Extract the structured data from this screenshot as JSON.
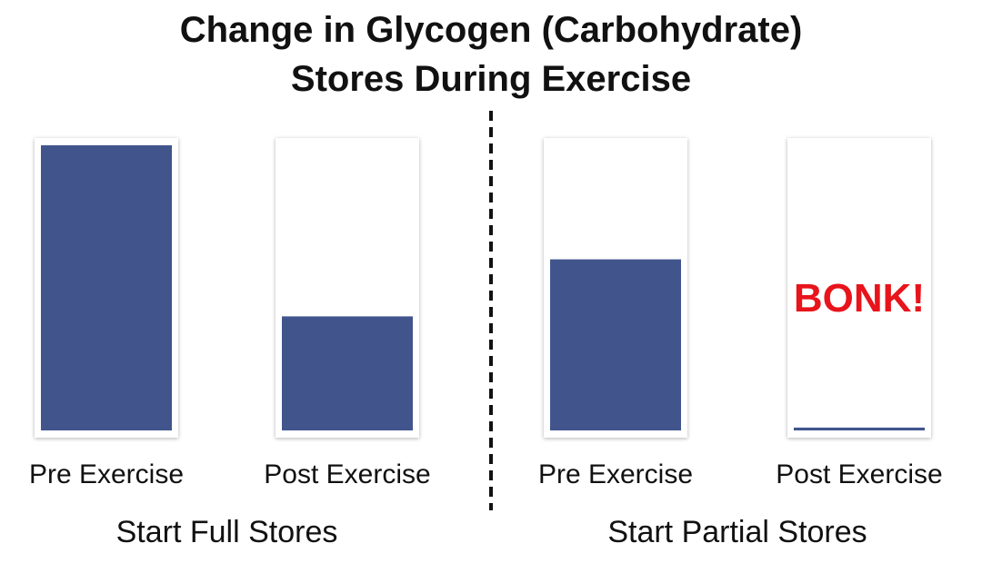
{
  "chart_data": {
    "type": "bar",
    "title": "Change in Glycogen (Carbohydrate) Stores During Exercise",
    "categories": [
      "Pre Exercise",
      "Post Exercise",
      "Pre Exercise",
      "Post Exercise"
    ],
    "values": [
      100,
      40,
      60,
      1
    ],
    "groups": [
      "Start Full Stores",
      "Start Partial Stores"
    ],
    "annotation": "BONK!",
    "color": "#41558c",
    "ylim": [
      0,
      100
    ]
  }
}
